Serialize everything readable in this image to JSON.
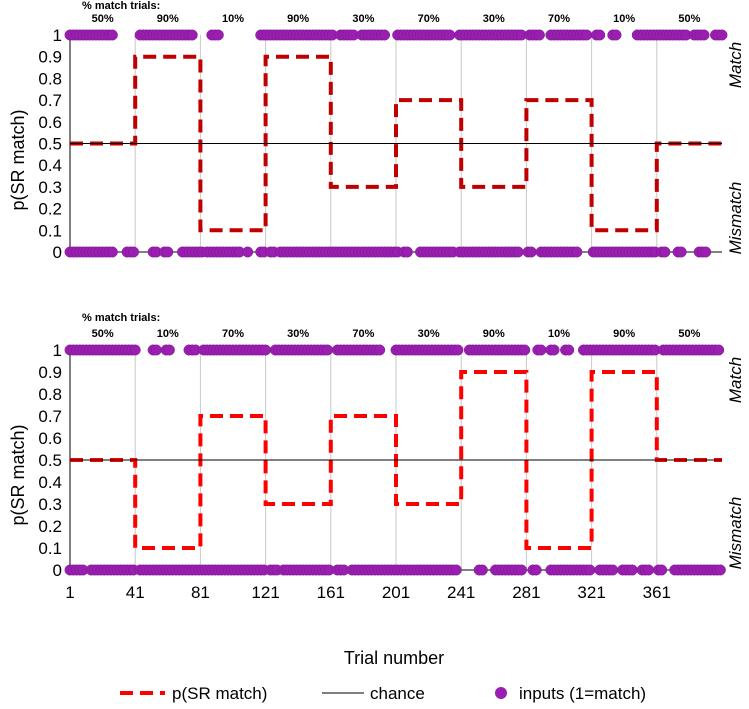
{
  "colors": {
    "sr": "#c00000",
    "sr_dash": "#ff0000",
    "chance": "#000000",
    "inputs": "#9a1fb0",
    "grid": "#c8c8c8"
  },
  "legend": {
    "sr_label": "p(SR match)",
    "chance_label": "chance",
    "inputs_label": "inputs (1=match)"
  },
  "chart_data": [
    {
      "type": "line",
      "title": "",
      "pct_header": "% match trials:",
      "ylabel": "p(SR match)",
      "side_top": "Match",
      "side_bottom": "Mismatch",
      "ylim": [
        0,
        1
      ],
      "yticks": [
        "0",
        "0.1",
        "0.2",
        "0.3",
        "0.4",
        "0.5",
        "0.6",
        "0.7",
        "0.8",
        "0.9",
        "1"
      ],
      "xlim": [
        1,
        401
      ],
      "vgrid": [
        41,
        81,
        121,
        161,
        201,
        241,
        281,
        321,
        361
      ],
      "block_labels": [
        "50%",
        "90%",
        "10%",
        "90%",
        "30%",
        "70%",
        "30%",
        "70%",
        "10%",
        "50%"
      ],
      "series": [
        {
          "name": "p(SR match)",
          "style": "dashed",
          "x": [
            1,
            41,
            41,
            81,
            81,
            121,
            121,
            161,
            161,
            201,
            201,
            241,
            241,
            281,
            281,
            321,
            321,
            361,
            361,
            401
          ],
          "y": [
            0.5,
            0.5,
            0.9,
            0.9,
            0.1,
            0.1,
            0.9,
            0.9,
            0.3,
            0.3,
            0.7,
            0.7,
            0.3,
            0.3,
            0.7,
            0.7,
            0.1,
            0.1,
            0.5,
            0.5
          ]
        },
        {
          "name": "chance",
          "style": "solid",
          "x": [
            1,
            401
          ],
          "y": [
            0.5,
            0.5
          ]
        }
      ],
      "inputs_name": "inputs (1=match)",
      "input_ranges": {
        "match": [
          [
            1,
            28
          ],
          [
            44,
            76
          ],
          [
            88,
            92
          ],
          [
            118,
            163
          ],
          [
            167,
            175
          ],
          [
            180,
            194
          ],
          [
            202,
            235
          ],
          [
            240,
            278
          ],
          [
            283,
            290
          ],
          [
            296,
            318
          ],
          [
            324,
            326
          ],
          [
            334,
            336
          ],
          [
            349,
            380
          ],
          [
            384,
            391
          ],
          [
            397,
            401
          ]
        ],
        "mismatch": [
          [
            1,
            27
          ],
          [
            36,
            40
          ],
          [
            52,
            55
          ],
          [
            59,
            62
          ],
          [
            70,
            83
          ],
          [
            85,
            106
          ],
          [
            110,
            111
          ],
          [
            118,
            121
          ],
          [
            124,
            126
          ],
          [
            130,
            202
          ],
          [
            206,
            209
          ],
          [
            216,
            236
          ],
          [
            240,
            276
          ],
          [
            282,
            284
          ],
          [
            290,
            313
          ],
          [
            322,
            360
          ],
          [
            364,
            366
          ],
          [
            374,
            376
          ],
          [
            387,
            391
          ]
        ]
      }
    },
    {
      "type": "line",
      "title": "",
      "pct_header": "% match trials:",
      "ylabel": "p(SR match)",
      "side_top": "Match",
      "side_bottom": "Mismatch",
      "xlabel": "Trial number",
      "ylim": [
        0,
        1
      ],
      "yticks": [
        "0",
        "0.1",
        "0.2",
        "0.3",
        "0.4",
        "0.5",
        "0.6",
        "0.7",
        "0.8",
        "0.9",
        "1"
      ],
      "xlim": [
        1,
        401
      ],
      "xticks": [
        1,
        41,
        81,
        121,
        161,
        201,
        241,
        281,
        321,
        361
      ],
      "vgrid": [
        41,
        81,
        121,
        161,
        201,
        241,
        281,
        321,
        361
      ],
      "block_labels": [
        "50%",
        "10%",
        "70%",
        "30%",
        "70%",
        "30%",
        "90%",
        "10%",
        "90%",
        "50%"
      ],
      "series": [
        {
          "name": "p(SR match)",
          "style": "dashed",
          "x": [
            1,
            41,
            41,
            81,
            81,
            121,
            121,
            161,
            161,
            201,
            201,
            241,
            241,
            281,
            281,
            321,
            321,
            361,
            361,
            401
          ],
          "y": [
            0.5,
            0.5,
            0.1,
            0.1,
            0.7,
            0.7,
            0.3,
            0.3,
            0.7,
            0.7,
            0.3,
            0.3,
            0.9,
            0.9,
            0.1,
            0.1,
            0.9,
            0.9,
            0.5,
            0.5
          ]
        },
        {
          "name": "chance",
          "style": "solid",
          "x": [
            1,
            401
          ],
          "y": [
            0.5,
            0.5
          ]
        }
      ],
      "inputs_name": "inputs (1=match)",
      "input_ranges": {
        "match": [
          [
            1,
            42
          ],
          [
            52,
            54
          ],
          [
            60,
            62
          ],
          [
            74,
            78
          ],
          [
            83,
            122
          ],
          [
            127,
            160
          ],
          [
            165,
            192
          ],
          [
            201,
            239
          ],
          [
            246,
            280
          ],
          [
            288,
            290
          ],
          [
            296,
            298
          ],
          [
            305,
            307
          ],
          [
            316,
            360
          ],
          [
            365,
            400
          ]
        ],
        "mismatch": [
          [
            1,
            10
          ],
          [
            14,
            40
          ],
          [
            44,
            120
          ],
          [
            124,
            128
          ],
          [
            132,
            160
          ],
          [
            165,
            170
          ],
          [
            174,
            238
          ],
          [
            252,
            254
          ],
          [
            262,
            278
          ],
          [
            285,
            288
          ],
          [
            296,
            320
          ],
          [
            326,
            334
          ],
          [
            340,
            346
          ],
          [
            352,
            356
          ],
          [
            362,
            364
          ],
          [
            372,
            400
          ]
        ]
      }
    }
  ]
}
